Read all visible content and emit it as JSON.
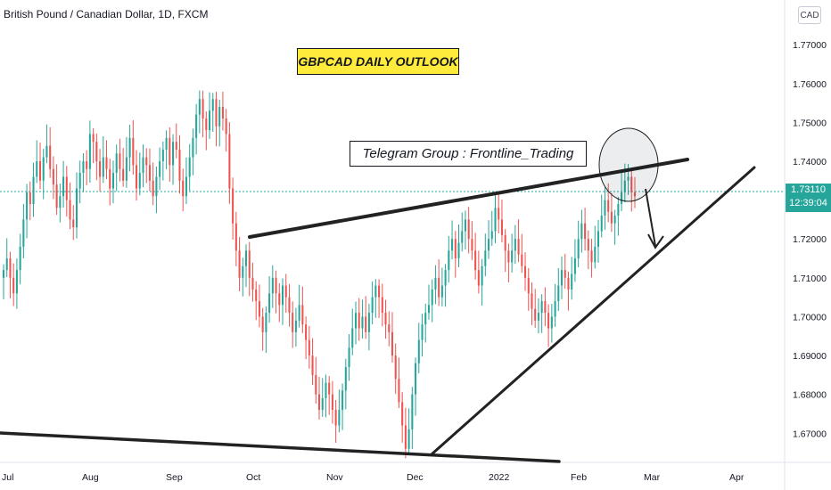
{
  "header": {
    "symbol_title": "British Pound / Canadian Dollar, 1D, FXCM",
    "currency_button": "CAD"
  },
  "annotations": {
    "banner": "GBPCAD DAILY OUTLOOK",
    "telegram": "Telegram Group : Frontline_Trading"
  },
  "colors": {
    "up": "#26a69a",
    "down": "#ef5350",
    "trendline": "#222222",
    "price_tag": "#26a69a"
  },
  "chart_data": {
    "type": "candlestick",
    "ylim": [
      1.6625,
      1.7815
    ],
    "y_ticks": [
      "1.77000",
      "1.76000",
      "1.75000",
      "1.74000",
      "1.72000",
      "1.71000",
      "1.70000",
      "1.69000",
      "1.68000",
      "1.67000"
    ],
    "x_ticks": [
      "Jul",
      "Aug",
      "Sep",
      "Oct",
      "Nov",
      "Dec",
      "2022",
      "Feb",
      "Mar",
      "Apr"
    ],
    "current_price": "1.73110",
    "countdown": "12:39:04",
    "grid": false,
    "close_series": [
      1.712,
      1.715,
      1.71,
      1.706,
      1.712,
      1.718,
      1.725,
      1.732,
      1.729,
      1.736,
      1.74,
      1.735,
      1.741,
      1.744,
      1.738,
      1.734,
      1.728,
      1.731,
      1.736,
      1.73,
      1.725,
      1.723,
      1.733,
      1.737,
      1.74,
      1.738,
      1.747,
      1.745,
      1.74,
      1.736,
      1.741,
      1.738,
      1.733,
      1.737,
      1.742,
      1.738,
      1.735,
      1.741,
      1.746,
      1.739,
      1.733,
      1.737,
      1.741,
      1.739,
      1.735,
      1.731,
      1.736,
      1.74,
      1.743,
      1.746,
      1.739,
      1.745,
      1.743,
      1.735,
      1.731,
      1.736,
      1.741,
      1.746,
      1.752,
      1.756,
      1.751,
      1.748,
      1.753,
      1.756,
      1.749,
      1.754,
      1.751,
      1.747,
      1.733,
      1.724,
      1.717,
      1.71,
      1.713,
      1.717,
      1.71,
      1.707,
      1.704,
      1.7,
      1.696,
      1.701,
      1.706,
      1.71,
      1.706,
      1.703,
      1.708,
      1.705,
      1.701,
      1.696,
      1.699,
      1.703,
      1.698,
      1.694,
      1.69,
      1.685,
      1.68,
      1.676,
      1.679,
      1.683,
      1.68,
      1.676,
      1.672,
      1.676,
      1.681,
      1.687,
      1.692,
      1.697,
      1.701,
      1.697,
      1.7,
      1.696,
      1.701,
      1.705,
      1.708,
      1.705,
      1.701,
      1.698,
      1.696,
      1.69,
      1.684,
      1.678,
      1.672,
      1.666,
      1.671,
      1.68,
      1.688,
      1.694,
      1.698,
      1.701,
      1.703,
      1.707,
      1.71,
      1.705,
      1.708,
      1.712,
      1.717,
      1.72,
      1.715,
      1.719,
      1.722,
      1.725,
      1.72,
      1.717,
      1.712,
      1.708,
      1.713,
      1.717,
      1.72,
      1.722,
      1.728,
      1.725,
      1.721,
      1.717,
      1.714,
      1.717,
      1.72,
      1.716,
      1.713,
      1.71,
      1.706,
      1.702,
      1.699,
      1.701,
      1.704,
      1.701,
      1.697,
      1.7,
      1.704,
      1.708,
      1.712,
      1.71,
      1.707,
      1.711,
      1.715,
      1.72,
      1.724,
      1.72,
      1.717,
      1.714,
      1.718,
      1.722,
      1.726,
      1.73,
      1.727,
      1.724,
      1.726,
      1.729,
      1.732,
      1.735,
      1.736,
      1.732,
      1.731
    ]
  }
}
